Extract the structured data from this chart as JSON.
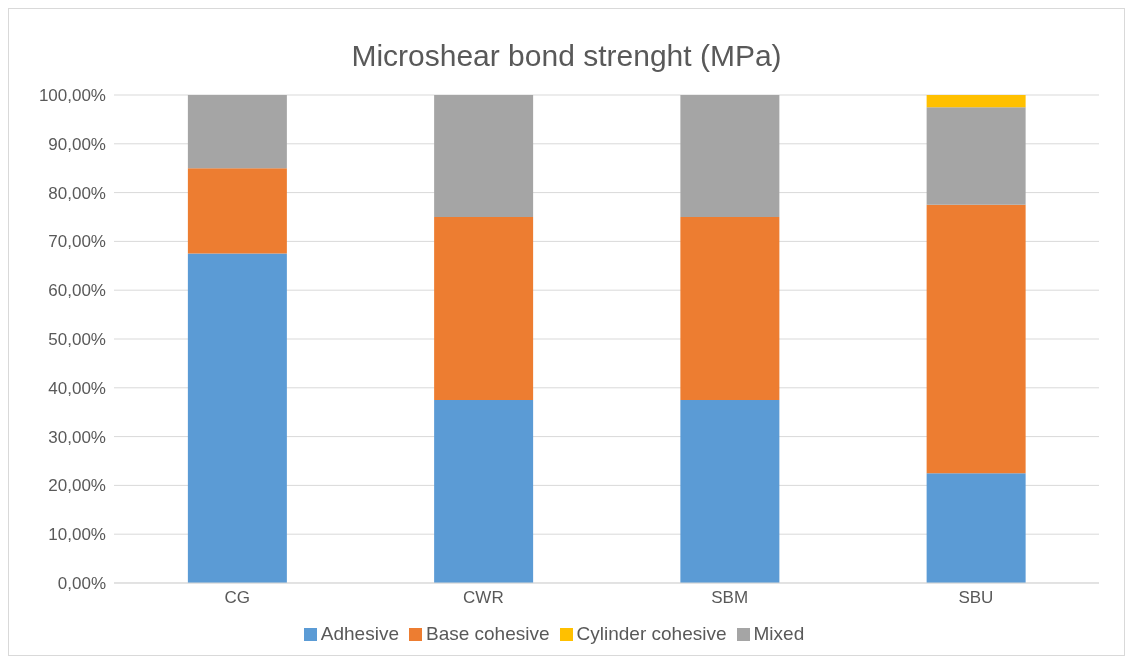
{
  "chart_data": {
    "type": "bar",
    "title": "Microshear bond strenght (MPa)",
    "categories": [
      "CG",
      "CWR",
      "SBM",
      "SBU"
    ],
    "series": [
      {
        "name": "Adhesive",
        "color": "#5b9bd5",
        "values": [
          67.5,
          37.5,
          37.5,
          22.5
        ]
      },
      {
        "name": "Base cohesive",
        "color": "#ed7d31",
        "values": [
          17.5,
          37.5,
          37.5,
          55
        ]
      },
      {
        "name": "Mixed",
        "color": "#a5a5a5",
        "values": [
          15,
          25,
          25,
          20
        ]
      },
      {
        "name": "Cylinder cohesive",
        "color": "#ffc000",
        "values": [
          0,
          0,
          0,
          2.5
        ]
      }
    ],
    "stacked": true,
    "ylim": [
      0,
      100
    ],
    "yticks": [
      {
        "value": 0,
        "label": "0,00%"
      },
      {
        "value": 10,
        "label": "10,00%"
      },
      {
        "value": 20,
        "label": "20,00%"
      },
      {
        "value": 30,
        "label": "30,00%"
      },
      {
        "value": 40,
        "label": "40,00%"
      },
      {
        "value": 50,
        "label": "50,00%"
      },
      {
        "value": 60,
        "label": "60,00%"
      },
      {
        "value": 70,
        "label": "70,00%"
      },
      {
        "value": 80,
        "label": "80,00%"
      },
      {
        "value": 90,
        "label": "90,00%"
      },
      {
        "value": 100,
        "label": "100,00%"
      }
    ],
    "grid": "y",
    "legend": "bottom"
  }
}
